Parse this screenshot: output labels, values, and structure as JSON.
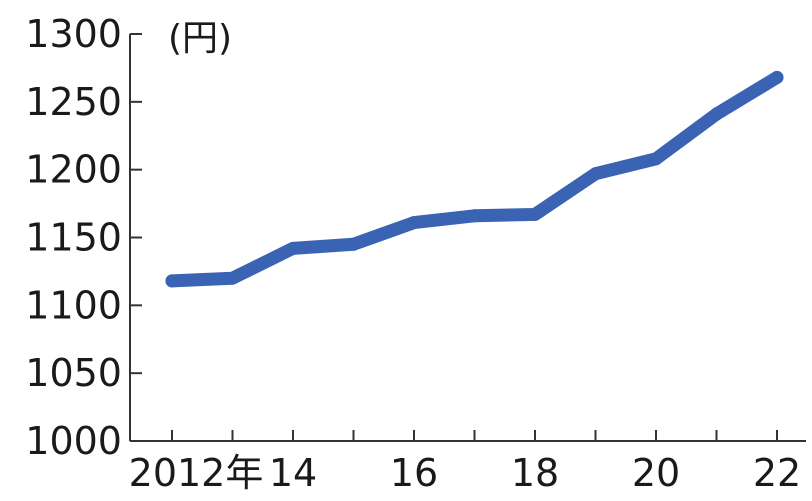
{
  "chart_data": {
    "type": "line",
    "title": "",
    "unit_label": "(円)",
    "xlabel": "",
    "ylabel": "",
    "x": [
      2012,
      2013,
      2014,
      2015,
      2016,
      2017,
      2018,
      2019,
      2020,
      2021,
      2022
    ],
    "x_tick_labels": [
      "2012年",
      "",
      "14",
      "",
      "16",
      "",
      "18",
      "",
      "20",
      "",
      "22"
    ],
    "y_ticks": [
      1000,
      1050,
      1100,
      1150,
      1200,
      1250,
      1300
    ],
    "y_tick_labels": [
      "1000",
      "1050",
      "1100",
      "1150",
      "1200",
      "1250",
      "1300"
    ],
    "ylim": [
      1000,
      1300
    ],
    "grid": false,
    "series": [
      {
        "values": [
          1118,
          1120,
          1142,
          1145,
          1161,
          1166,
          1167,
          1197,
          1208,
          1241,
          1268
        ],
        "color": "#3a63b4"
      }
    ]
  }
}
